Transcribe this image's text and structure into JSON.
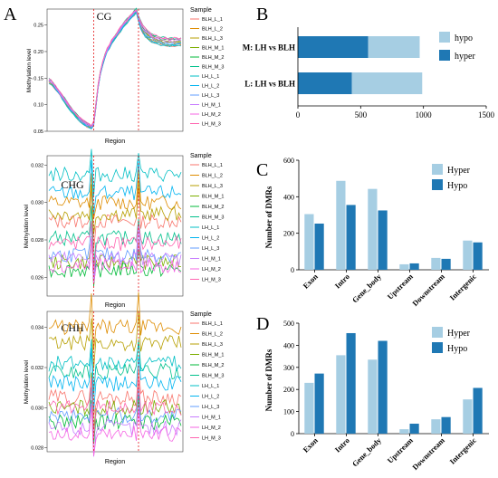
{
  "panel_labels": {
    "A": "A",
    "B": "B",
    "C": "C",
    "D": "D"
  },
  "colors": {
    "BLH_L_1": "#F8766D",
    "BLH_L_2": "#DE8C00",
    "BLH_L_3": "#B79F00",
    "BLH_M_1": "#7CAE00",
    "BLH_M_2": "#00BA38",
    "BLH_M_3": "#00C08B",
    "LH_L_1": "#00BFC4",
    "LH_L_2": "#00B4F0",
    "LH_L_3": "#619CFF",
    "LH_M_1": "#C77CFF",
    "LH_M_2": "#F564E3",
    "LH_M_3": "#FF64B0",
    "hypo_light": "#A6CEE3",
    "hyper_dark": "#1F78B4",
    "dashed_red": "#E41A1C"
  },
  "chart_data": [
    {
      "panel": "A",
      "type": "line",
      "title": "CG",
      "xlabel": "Region",
      "ylabel": "Methylation level",
      "ylim": [
        0.05,
        0.28
      ],
      "yticks": [
        "0.05",
        "0.10",
        "0.15",
        "0.20",
        "0.25"
      ],
      "legend_title": "Sample",
      "series_names": [
        "BLH_L_1",
        "BLH_L_2",
        "BLH_L_3",
        "BLH_M_1",
        "BLH_M_2",
        "BLH_M_3",
        "LH_L_1",
        "LH_L_2",
        "LH_L_3",
        "LH_M_1",
        "LH_M_2",
        "LH_M_3"
      ],
      "boundaries": [
        20,
        40
      ],
      "mean_profile": [
        0.145,
        0.142,
        0.138,
        0.132,
        0.127,
        0.121,
        0.115,
        0.108,
        0.102,
        0.096,
        0.091,
        0.086,
        0.081,
        0.076,
        0.072,
        0.068,
        0.065,
        0.062,
        0.06,
        0.058,
        0.065,
        0.1,
        0.135,
        0.16,
        0.178,
        0.192,
        0.202,
        0.21,
        0.218,
        0.224,
        0.23,
        0.236,
        0.242,
        0.248,
        0.253,
        0.258,
        0.263,
        0.268,
        0.272,
        0.276,
        0.262,
        0.25,
        0.242,
        0.236,
        0.232,
        0.228,
        0.226,
        0.224,
        0.222,
        0.221,
        0.22,
        0.219,
        0.219,
        0.218,
        0.218,
        0.218,
        0.218,
        0.218,
        0.218,
        0.219
      ],
      "spread": 0.006
    },
    {
      "panel": "A",
      "type": "line",
      "title": "CHG",
      "xlabel": "Region",
      "ylabel": "Methylation level",
      "ylim": [
        0.025,
        0.0325
      ],
      "yticks": [
        "0.026",
        "0.028",
        "0.030",
        "0.032"
      ],
      "legend_title": "Sample",
      "series_names": [
        "BLH_L_1",
        "BLH_L_2",
        "BLH_L_3",
        "BLH_M_1",
        "BLH_M_2",
        "BLH_M_3",
        "LH_L_1",
        "LH_L_2",
        "LH_L_3",
        "LH_M_1",
        "LH_M_2",
        "LH_M_3"
      ],
      "boundaries": [
        20,
        40
      ],
      "levels": [
        0.029,
        0.03,
        0.0294,
        0.0268,
        0.0264,
        0.0281,
        0.0315,
        0.0305,
        0.0272,
        0.027,
        0.0266,
        0.0278
      ],
      "noise": 0.0004
    },
    {
      "panel": "A",
      "type": "line",
      "title": "CHH",
      "xlabel": "Region",
      "ylabel": "Methylation level",
      "ylim": [
        0.0278,
        0.0348
      ],
      "yticks": [
        "0.028",
        "0.030",
        "0.032",
        "0.034"
      ],
      "legend_title": "Sample",
      "series_names": [
        "BLH_L_1",
        "BLH_L_2",
        "BLH_L_3",
        "BLH_M_1",
        "BLH_M_2",
        "BLH_M_3",
        "LH_L_1",
        "LH_L_2",
        "LH_L_3",
        "LH_M_1",
        "LH_M_2",
        "LH_M_3"
      ],
      "boundaries": [
        20,
        40
      ],
      "levels": [
        0.0305,
        0.034,
        0.0332,
        0.03,
        0.0293,
        0.0318,
        0.0322,
        0.0312,
        0.0296,
        0.029,
        0.0287,
        0.03
      ],
      "noise": 0.0004
    },
    {
      "panel": "B",
      "type": "bar",
      "orientation": "horizontal",
      "categories": [
        "M: LH vs BLH",
        "L: LH vs BLH"
      ],
      "series": [
        {
          "name": "hyper",
          "values": [
            560,
            430
          ]
        },
        {
          "name": "hypo",
          "values": [
            410,
            560
          ]
        }
      ],
      "xlim": [
        0,
        1500
      ],
      "xticks": [
        "0",
        "500",
        "1000",
        "1500"
      ],
      "legend": [
        "hypo",
        "hyper"
      ],
      "legend_position": "top-right"
    },
    {
      "panel": "C",
      "type": "bar",
      "categories": [
        "Exon",
        "Intro",
        "Gene_body",
        "Upstream",
        "Downstream",
        "Intergenic"
      ],
      "series": [
        {
          "name": "Hyper",
          "values": [
            305,
            487,
            443,
            30,
            65,
            160
          ]
        },
        {
          "name": "Hypo",
          "values": [
            253,
            355,
            325,
            35,
            60,
            150
          ]
        }
      ],
      "ylabel": "Number of DMRs",
      "ylim": [
        0,
        600
      ],
      "yticks": [
        "0",
        "200",
        "400",
        "600"
      ],
      "legend_position": "top-right"
    },
    {
      "panel": "D",
      "type": "bar",
      "categories": [
        "Exon",
        "Intro",
        "Gene_body",
        "Upstream",
        "Downstream",
        "Intergenic"
      ],
      "series": [
        {
          "name": "Hyper",
          "values": [
            230,
            355,
            335,
            20,
            65,
            155
          ]
        },
        {
          "name": "Hypo",
          "values": [
            272,
            455,
            420,
            45,
            75,
            207
          ]
        }
      ],
      "ylabel": "Number of DMRs",
      "ylim": [
        0,
        500
      ],
      "yticks": [
        "0",
        "100",
        "200",
        "300",
        "400",
        "500"
      ],
      "legend_position": "top-right"
    }
  ]
}
